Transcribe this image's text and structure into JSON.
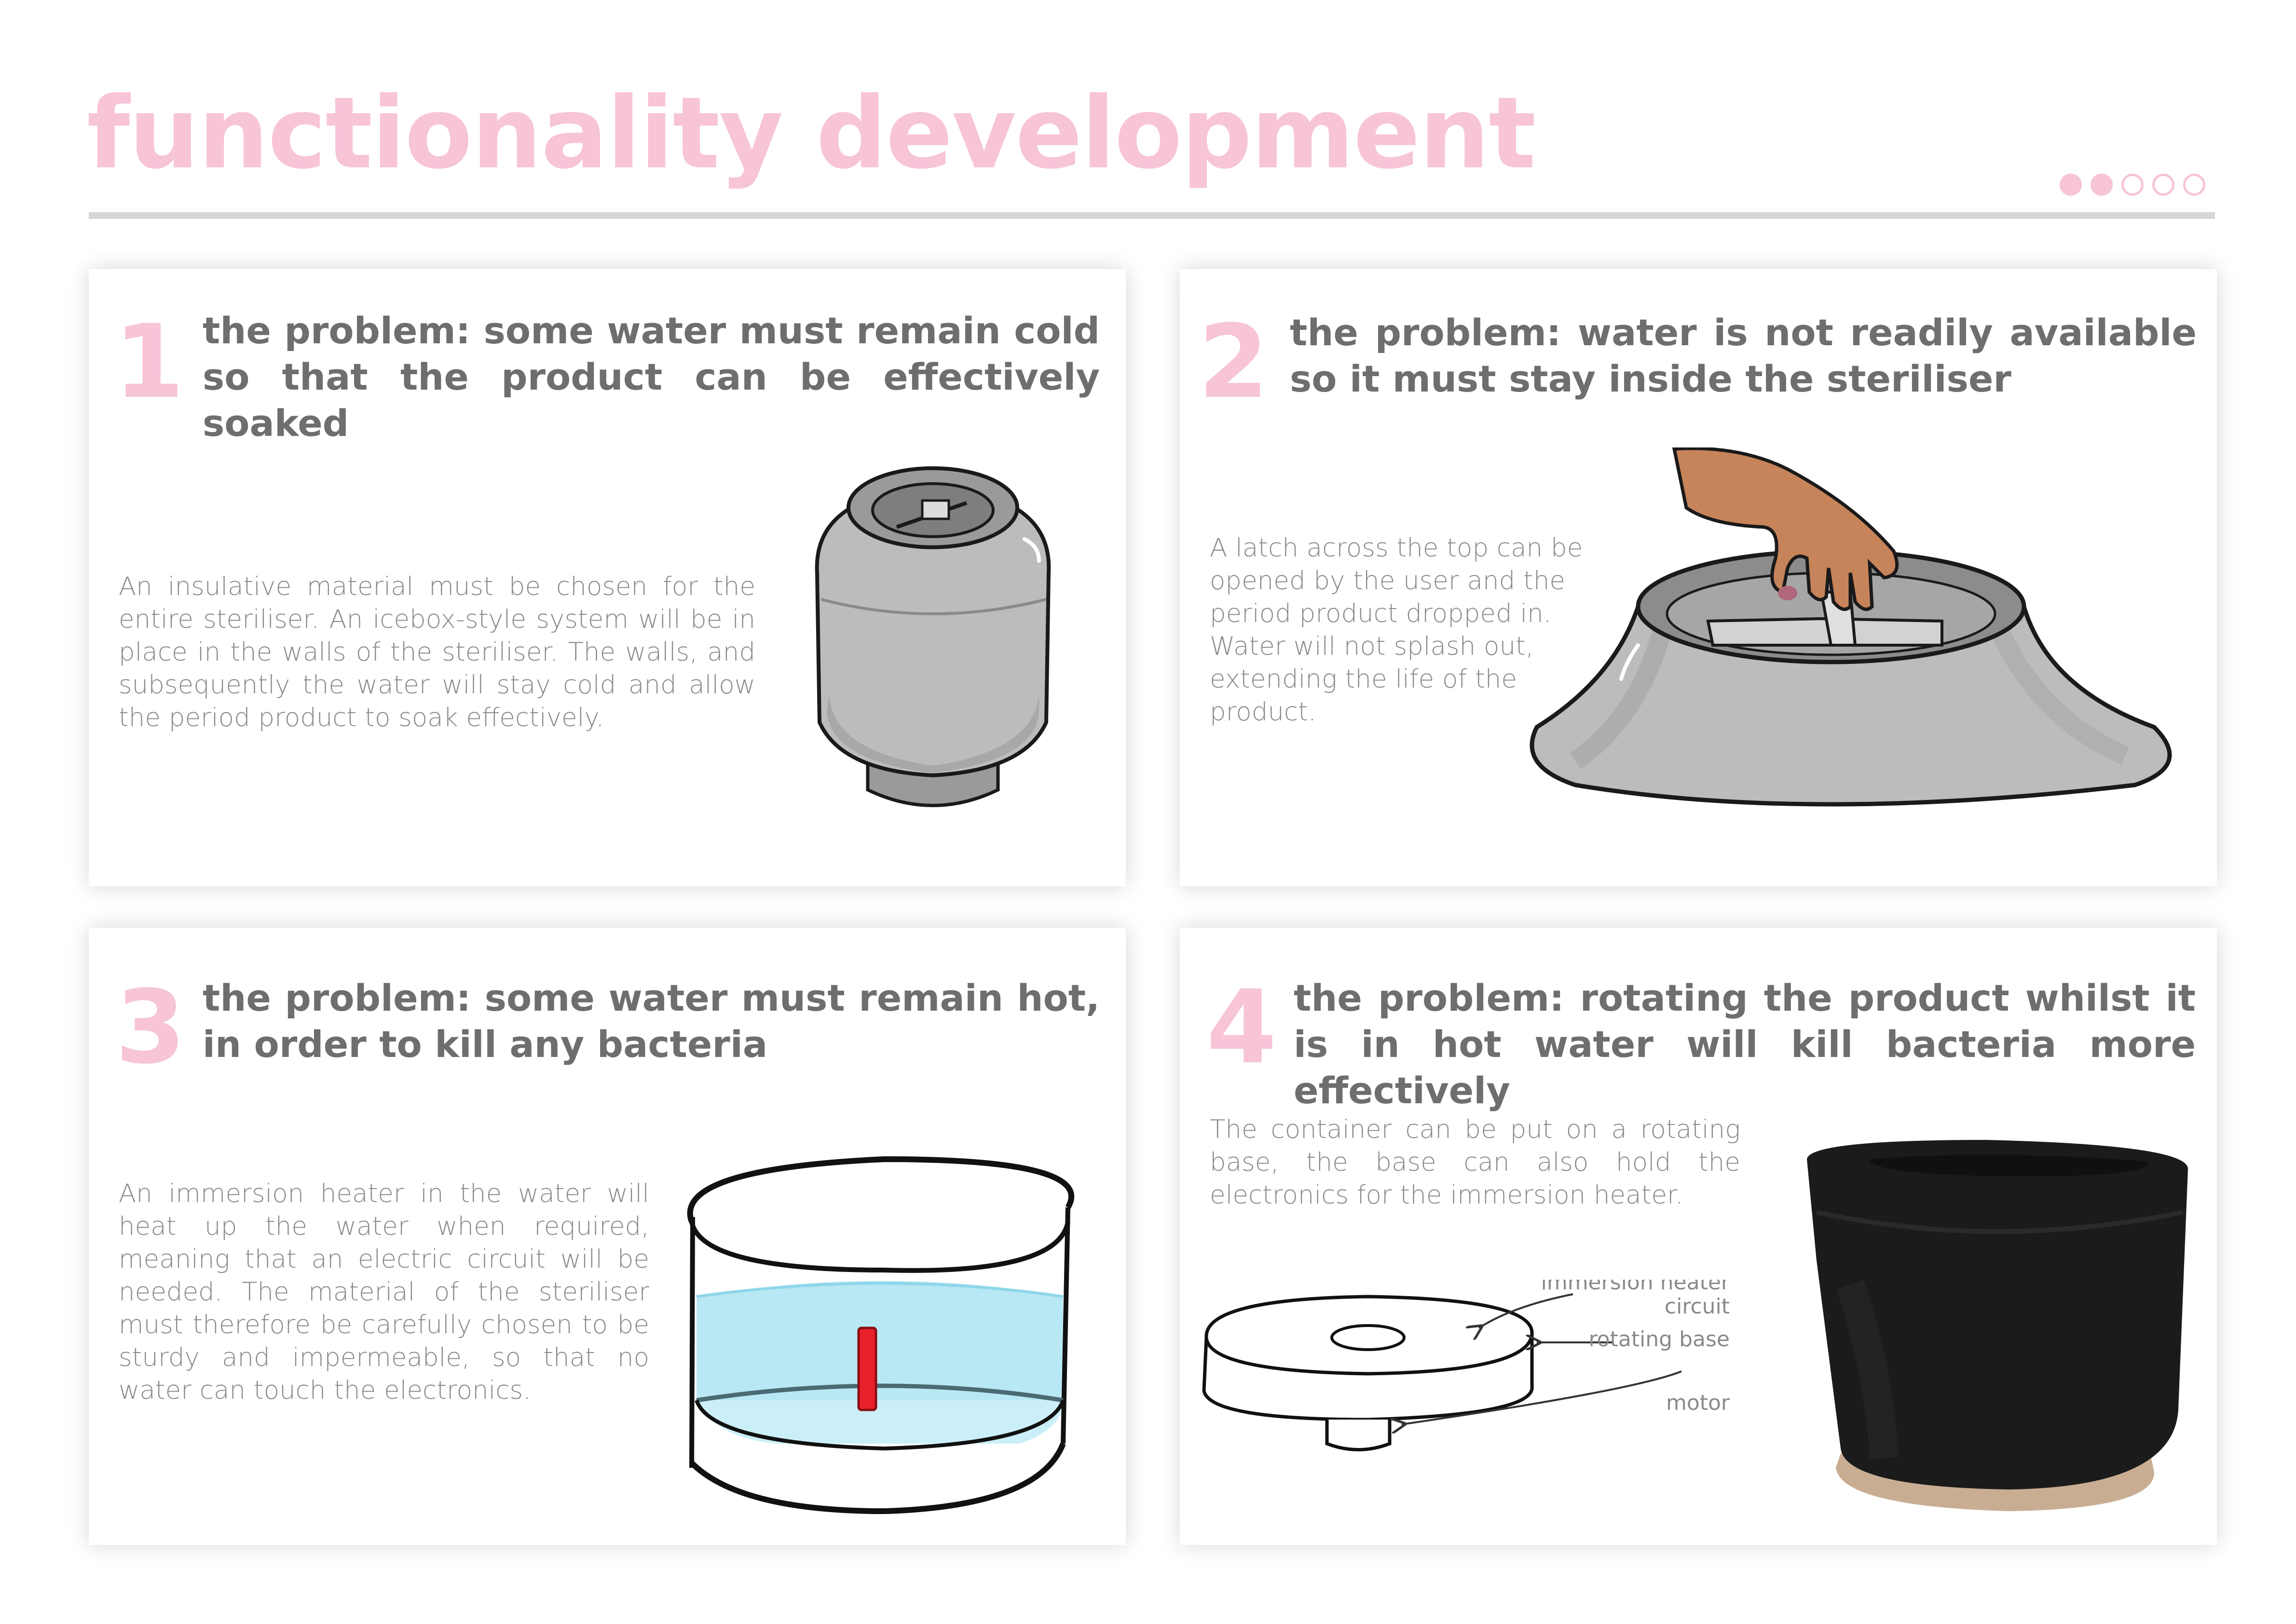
{
  "page": {
    "title": "functionality development",
    "dots": {
      "total": 5,
      "filled": 2
    }
  },
  "colors": {
    "accent": "#f7c4d8",
    "heading": "#6e6e6e",
    "body": "#8a8a8a",
    "rule": "#d6d6d6"
  },
  "cards": [
    {
      "number": "1",
      "heading": "the problem: some water must remain cold so that the product can be effectively soaked",
      "body": "An insulative material must be chosen for the entire steriliser. An icebox-style system will be in place in the walls of the steriliser. The walls, and subsequently the water will stay cold and allow the period product to soak effectively."
    },
    {
      "number": "2",
      "heading": "the problem: water is not readily available so it must stay inside the steriliser",
      "body": "A latch across the top can be opened by the user and the period product dropped in. Water will not splash out, extending the life of the product."
    },
    {
      "number": "3",
      "heading": "the problem: some water must remain hot, in order to kill any bacteria",
      "body": "An immersion heater in the water will heat up the water when required, meaning that an electric circuit will be needed. The material of the steriliser must therefore be carefully chosen to be sturdy and impermeable, so that no water can touch the electronics."
    },
    {
      "number": "4",
      "heading": "the problem: rotating the product whilst it is in hot water will kill bacteria more effectively",
      "body": "The container can be put on a rotating base, the base can also hold the electronics for the immersion heater.",
      "labels": {
        "heater_line1": "immersion heater",
        "heater_line2": "circuit",
        "base": "rotating base",
        "motor": "motor"
      }
    }
  ]
}
